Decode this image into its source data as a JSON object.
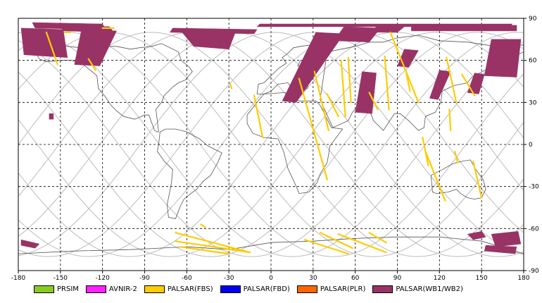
{
  "chart_data": {
    "type": "map",
    "x_ticks": [
      -180,
      -150,
      -120,
      -90,
      -60,
      -30,
      0,
      30,
      60,
      90,
      120,
      150,
      180
    ],
    "y_ticks": [
      90,
      60,
      30,
      0,
      -30,
      -60,
      -90
    ],
    "xlim": [
      -180,
      180
    ],
    "ylim": [
      -90,
      90
    ],
    "grid": "dashed",
    "legend": [
      {
        "label": "PRSIM",
        "color": "#88cc22"
      },
      {
        "label": "AVNIR-2",
        "color": "#ff22ff"
      },
      {
        "label": "PALSAR(FBS)",
        "color": "#ffcc00"
      },
      {
        "label": "PALSAR(FBD)",
        "color": "#0000ee"
      },
      {
        "label": "PALSAR(PLR)",
        "color": "#ff6600"
      },
      {
        "label": "PALSAR(WB1/WB2)",
        "color": "#993366"
      }
    ],
    "wb_swaths": [
      {
        "lon": [
          -178,
          -148,
          -145,
          -176
        ],
        "lat": [
          83,
          82,
          62,
          64
        ]
      },
      {
        "lon": [
          -170,
          -120,
          -118,
          -168
        ],
        "lat": [
          87,
          86,
          82,
          83
        ]
      },
      {
        "lon": [
          -150,
          -115,
          -112,
          -148
        ],
        "lat": [
          85,
          84,
          80,
          81
        ]
      },
      {
        "lon": [
          -135,
          -110,
          -122,
          -140
        ],
        "lat": [
          82,
          81,
          56,
          57
        ]
      },
      {
        "lon": [
          -70,
          -10,
          -12,
          -72
        ],
        "lat": [
          83,
          82,
          79,
          80
        ]
      },
      {
        "lon": [
          -65,
          -25,
          -30,
          -55
        ],
        "lat": [
          82,
          81,
          68,
          70
        ]
      },
      {
        "lon": [
          -10,
          170,
          172,
          -8
        ],
        "lat": [
          84,
          84,
          86,
          86
        ]
      },
      {
        "lon": [
          32,
          52,
          18,
          8
        ],
        "lat": [
          80,
          79,
          30,
          31
        ]
      },
      {
        "lon": [
          52,
          78,
          70,
          45
        ],
        "lat": [
          84,
          83,
          73,
          74
        ]
      },
      {
        "lon": [
          100,
          175,
          175,
          100
        ],
        "lat": [
          85,
          85,
          81,
          81
        ]
      },
      {
        "lon": [
          75,
          95,
          90,
          70
        ],
        "lat": [
          84,
          84,
          80,
          80
        ]
      },
      {
        "lon": [
          65,
          75,
          72,
          60
        ],
        "lat": [
          52,
          51,
          22,
          23
        ]
      },
      {
        "lon": [
          95,
          105,
          98,
          90
        ],
        "lat": [
          68,
          67,
          55,
          56
        ]
      },
      {
        "lon": [
          120,
          128,
          119,
          113
        ],
        "lat": [
          53,
          52,
          32,
          33
        ]
      },
      {
        "lon": [
          145,
          152,
          148,
          140
        ],
        "lat": [
          51,
          50,
          36,
          37
        ]
      },
      {
        "lon": [
          157,
          178,
          175,
          152
        ],
        "lat": [
          75,
          75,
          48,
          49
        ]
      },
      {
        "lon": [
          162,
          176,
          174,
          160
        ],
        "lat": [
          74,
          73,
          60,
          61
        ]
      },
      {
        "lon": [
          -158,
          -155,
          -155,
          -158
        ],
        "lat": [
          22,
          22,
          18,
          18
        ]
      },
      {
        "lon": [
          -178,
          -165,
          -168,
          -178
        ],
        "lat": [
          -68,
          -71,
          -74,
          -72
        ]
      },
      {
        "lon": [
          140,
          150,
          153,
          144
        ],
        "lat": [
          -64,
          -62,
          -66,
          -68
        ]
      },
      {
        "lon": [
          157,
          176,
          178,
          160
        ],
        "lat": [
          -64,
          -62,
          -71,
          -73
        ]
      },
      {
        "lon": [
          153,
          175,
          174,
          152
        ],
        "lat": [
          -72,
          -73,
          -78,
          -76
        ]
      }
    ],
    "fbs_segments": [
      {
        "lon": [
          -160,
          -152
        ],
        "lat": [
          80,
          57
        ]
      },
      {
        "lon": [
          -147,
          -143
        ],
        "lat": [
          80,
          80
        ]
      },
      {
        "lon": [
          -130,
          -125
        ],
        "lat": [
          61,
          53
        ]
      },
      {
        "lon": [
          -120,
          -112
        ],
        "lat": [
          83,
          83
        ]
      },
      {
        "lon": [
          -29,
          -28
        ],
        "lat": [
          43,
          40
        ]
      },
      {
        "lon": [
          -12,
          -6
        ],
        "lat": [
          35,
          5
        ]
      },
      {
        "lon": [
          20,
          40
        ],
        "lat": [
          47,
          -25
        ]
      },
      {
        "lon": [
          31,
          41
        ],
        "lat": [
          52,
          10
        ]
      },
      {
        "lon": [
          40,
          48
        ],
        "lat": [
          36,
          20
        ]
      },
      {
        "lon": [
          50,
          53
        ],
        "lat": [
          60,
          20
        ]
      },
      {
        "lon": [
          55,
          57
        ],
        "lat": [
          62,
          30
        ]
      },
      {
        "lon": [
          70,
          76
        ],
        "lat": [
          37,
          25
        ]
      },
      {
        "lon": [
          81,
          84
        ],
        "lat": [
          63,
          25
        ]
      },
      {
        "lon": [
          85,
          105
        ],
        "lat": [
          80,
          30
        ]
      },
      {
        "lon": [
          96,
          99
        ],
        "lat": [
          53,
          38
        ]
      },
      {
        "lon": [
          108,
          112
        ],
        "lat": [
          5,
          -15
        ]
      },
      {
        "lon": [
          110,
          124
        ],
        "lat": [
          -5,
          -40
        ]
      },
      {
        "lon": [
          127,
          128
        ],
        "lat": [
          25,
          10
        ]
      },
      {
        "lon": [
          125,
          132
        ],
        "lat": [
          62,
          30
        ]
      },
      {
        "lon": [
          136,
          145
        ],
        "lat": [
          50,
          35
        ]
      },
      {
        "lon": [
          131,
          133
        ],
        "lat": [
          -5,
          -13
        ]
      },
      {
        "lon": [
          144,
          150
        ],
        "lat": [
          -12,
          -38
        ]
      },
      {
        "lon": [
          -50,
          -47
        ],
        "lat": [
          -57,
          -59
        ]
      },
      {
        "lon": [
          -68,
          -15
        ],
        "lat": [
          -63,
          -77
        ]
      },
      {
        "lon": [
          -68,
          -15
        ],
        "lat": [
          -69,
          -77
        ]
      },
      {
        "lon": [
          -65,
          -30
        ],
        "lat": [
          -73,
          -78
        ]
      },
      {
        "lon": [
          24,
          55
        ],
        "lat": [
          -68,
          -78
        ]
      },
      {
        "lon": [
          35,
          58
        ],
        "lat": [
          -63,
          -74
        ]
      },
      {
        "lon": [
          48,
          82
        ],
        "lat": [
          -64,
          -77
        ]
      },
      {
        "lon": [
          70,
          82
        ],
        "lat": [
          -63,
          -70
        ]
      }
    ],
    "coastline": [
      {
        "lon": [
          -168,
          -165,
          -160,
          -150,
          -142,
          -135,
          -130,
          -124,
          -123,
          -118,
          -114,
          -110,
          -105,
          -97,
          -90,
          -87,
          -83,
          -81,
          -80,
          -82,
          -78,
          -76,
          -70,
          -66,
          -61,
          -56,
          -58,
          -64,
          -66,
          -78,
          -85,
          -94,
          -100,
          -110,
          -125,
          -135,
          -145,
          -156,
          -166,
          -168
        ],
        "lat": [
          66,
          61,
          59,
          60,
          60,
          58,
          54,
          49,
          40,
          34,
          28,
          24,
          20,
          18,
          21,
          21,
          10,
          9,
          9,
          25,
          30,
          35,
          41,
          44,
          46,
          52,
          55,
          60,
          66,
          72,
          70,
          69,
          68,
          70,
          70,
          69,
          70,
          71,
          67,
          66
        ]
      },
      {
        "lon": [
          -79,
          -75,
          -68,
          -60,
          -51,
          -45,
          -39,
          -35,
          -38,
          -43,
          -48,
          -53,
          -57,
          -62,
          -65,
          -68,
          -73,
          -74,
          -71,
          -70,
          -76,
          -81,
          -80,
          -79
        ],
        "lat": [
          9,
          11,
          11,
          9,
          4,
          -1,
          -4,
          -6,
          -13,
          -22,
          -26,
          -32,
          -35,
          -39,
          -45,
          -53,
          -52,
          -43,
          -28,
          -18,
          -12,
          -5,
          0,
          9
        ]
      },
      {
        "lon": [
          -10,
          -9,
          -5,
          0,
          3,
          5,
          11,
          8,
          12,
          16,
          21,
          28,
          30,
          27,
          21,
          19,
          23,
          25,
          28,
          26,
          21,
          15,
          12,
          5,
          0,
          -5,
          -10
        ],
        "lat": [
          36,
          43,
          44,
          49,
          52,
          54,
          58,
          62,
          65,
          69,
          70,
          71,
          70,
          61,
          60,
          56,
          55,
          57,
          56,
          40,
          38,
          40,
          44,
          43,
          38,
          36,
          36
        ]
      },
      {
        "lon": [
          -17,
          -17,
          -10,
          -5,
          10,
          20,
          32,
          35,
          43,
          51,
          42,
          40,
          35,
          33,
          27,
          20,
          18,
          12,
          9,
          5,
          -5,
          -13,
          -17
        ],
        "lat": [
          15,
          21,
          30,
          36,
          37,
          31,
          31,
          28,
          12,
          11,
          -1,
          -13,
          -21,
          -27,
          -34,
          -35,
          -30,
          -17,
          -5,
          4,
          5,
          8,
          15
        ]
      },
      {
        "lon": [
          35,
          44,
          55,
          58,
          60,
          70,
          73,
          80,
          88,
          92,
          98,
          105,
          109,
          110,
          117,
          121,
          122,
          130,
          140,
          143,
          162,
          180,
          180,
          160,
          140,
          120,
          105,
          90,
          80,
          70,
          60,
          50,
          40,
          35
        ],
        "lat": [
          32,
          12,
          17,
          23,
          25,
          25,
          17,
          10,
          22,
          22,
          17,
          10,
          12,
          20,
          23,
          30,
          38,
          42,
          44,
          48,
          58,
          66,
          71,
          70,
          73,
          74,
          78,
          76,
          73,
          73,
          70,
          68,
          66,
          32
        ]
      },
      {
        "lon": [
          114,
          122,
          129,
          136,
          142,
          146,
          151,
          153,
          150,
          145,
          140,
          135,
          132,
          126,
          118,
          115,
          114
        ],
        "lat": [
          -22,
          -18,
          -14,
          -12,
          -11,
          -18,
          -25,
          -32,
          -38,
          -39,
          -38,
          -35,
          -32,
          -34,
          -35,
          -34,
          -22
        ]
      },
      {
        "lon": [
          -180,
          -140,
          -100,
          -60,
          -30,
          0,
          30,
          60,
          90,
          120,
          150,
          180
        ],
        "lat": [
          -78,
          -76,
          -75,
          -73,
          -75,
          -70,
          -69,
          -67,
          -66,
          -66,
          -69,
          -78
        ]
      }
    ]
  }
}
